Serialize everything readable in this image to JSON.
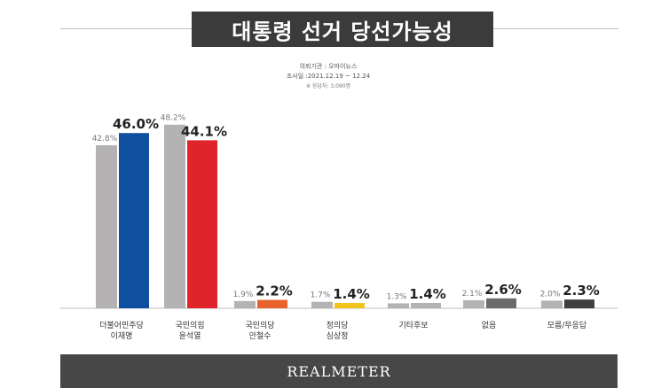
{
  "header": {
    "title": "대통령 선거 당선가능성"
  },
  "meta": {
    "agency": "의뢰기관 : 오마이뉴스",
    "period": "조사일 :2021.12.19 ~ 12.24",
    "sample": "※ 응답자: 3,090명"
  },
  "footer": {
    "brand": "REALMETER"
  },
  "chart_data": {
    "type": "bar",
    "categories": [
      [
        "더불어민주당",
        "이재명"
      ],
      [
        "국민의힘",
        "윤석열"
      ],
      [
        "국민의당",
        "안철수"
      ],
      [
        "정의당",
        "심상정"
      ],
      [
        "기타후보"
      ],
      [
        "없음"
      ],
      [
        "모름/무응답"
      ]
    ],
    "series": [
      {
        "values": [
          42.8,
          48.2,
          1.9,
          1.7,
          1.3,
          2.1,
          2.0
        ],
        "color": "#b4b2b3"
      },
      {
        "values": [
          46.0,
          44.1,
          2.2,
          1.4,
          1.4,
          2.6,
          2.3
        ],
        "colors": [
          "#0e4f9f",
          "#e0242c",
          "#e8632c",
          "#f2c31b",
          "#b4b2b3",
          "#6b6b6b",
          "#3f3f3f"
        ]
      }
    ],
    "ylim": [
      0,
      50
    ],
    "grid": false
  }
}
